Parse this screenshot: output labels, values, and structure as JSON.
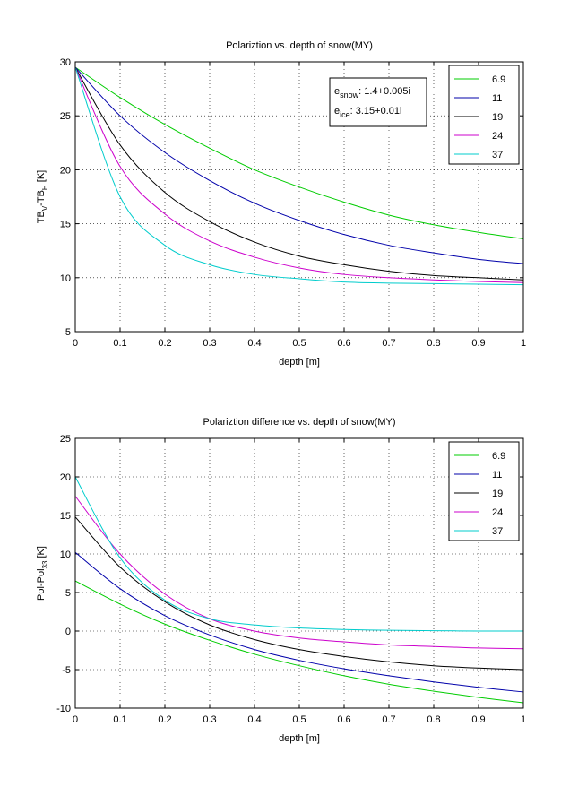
{
  "chart_data": [
    {
      "type": "line",
      "title": "Polariztion vs. depth of snow(MY)",
      "xlabel": "depth [m]",
      "ylabel": {
        "base1": "TB",
        "sub1": "V",
        "mid": "-TB",
        "sub2": "H",
        "tail": " [K]"
      },
      "xlim": [
        0,
        1
      ],
      "ylim": [
        5,
        30
      ],
      "xticks": [
        0,
        0.1,
        0.2,
        0.3,
        0.4,
        0.5,
        0.6,
        0.7,
        0.8,
        0.9,
        1
      ],
      "xtick_labels": [
        "0",
        "0.1",
        "0.2",
        "0.3",
        "0.4",
        "0.5",
        "0.6",
        "0.7",
        "0.8",
        "0.9",
        "1"
      ],
      "yticks": [
        5,
        10,
        15,
        20,
        25,
        30
      ],
      "ytick_labels": [
        "5",
        "10",
        "15",
        "20",
        "25",
        "30"
      ],
      "grid": true,
      "legend_placement": "top-right",
      "annotation": [
        {
          "base": "e",
          "sub": "snow",
          "text": ": 1.4+0.005i"
        },
        {
          "base": "e",
          "sub": "ice",
          "text": ": 3.15+0.01i"
        }
      ],
      "x": [
        0,
        0.1,
        0.2,
        0.3,
        0.4,
        0.5,
        0.6,
        0.7,
        0.8,
        0.9,
        1.0
      ],
      "series": [
        {
          "name": "6.9",
          "color": "#00cc00",
          "values": [
            29.5,
            26.7,
            24.2,
            22.0,
            20.0,
            18.4,
            17.0,
            15.8,
            14.9,
            14.2,
            13.6
          ]
        },
        {
          "name": "11",
          "color": "#0000aa",
          "values": [
            29.5,
            25.0,
            21.6,
            19.0,
            16.9,
            15.3,
            14.0,
            13.0,
            12.3,
            11.7,
            11.3
          ]
        },
        {
          "name": "19",
          "color": "#000000",
          "values": [
            29.5,
            22.3,
            17.9,
            15.2,
            13.3,
            12.0,
            11.2,
            10.6,
            10.2,
            10.0,
            9.8
          ]
        },
        {
          "name": "24",
          "color": "#cc00cc",
          "values": [
            29.5,
            20.3,
            15.9,
            13.4,
            11.9,
            10.9,
            10.3,
            10.0,
            9.8,
            9.65,
            9.55
          ]
        },
        {
          "name": "37",
          "color": "#00cccc",
          "values": [
            29.5,
            17.5,
            13.0,
            11.2,
            10.3,
            9.9,
            9.6,
            9.5,
            9.45,
            9.4,
            9.35
          ]
        }
      ]
    },
    {
      "type": "line",
      "title": "Polariztion difference vs. depth of snow(MY)",
      "xlabel": "depth [m]",
      "ylabel": {
        "base1": "Pol-Pol",
        "sub1": "33",
        "mid": "",
        "sub2": "",
        "tail": " [K]"
      },
      "xlim": [
        0,
        1
      ],
      "ylim": [
        -10,
        25
      ],
      "xticks": [
        0,
        0.1,
        0.2,
        0.3,
        0.4,
        0.5,
        0.6,
        0.7,
        0.8,
        0.9,
        1
      ],
      "xtick_labels": [
        "0",
        "0.1",
        "0.2",
        "0.3",
        "0.4",
        "0.5",
        "0.6",
        "0.7",
        "0.8",
        "0.9",
        "1"
      ],
      "yticks": [
        -10,
        -5,
        0,
        5,
        10,
        15,
        20,
        25
      ],
      "ytick_labels": [
        "-10",
        "-5",
        "0",
        "5",
        "10",
        "15",
        "20",
        "25"
      ],
      "grid": true,
      "legend_placement": "top-right",
      "x": [
        0,
        0.1,
        0.2,
        0.3,
        0.4,
        0.5,
        0.6,
        0.7,
        0.8,
        0.9,
        1.0
      ],
      "series": [
        {
          "name": "6.9",
          "color": "#00cc00",
          "values": [
            6.5,
            3.5,
            0.9,
            -1.2,
            -3.0,
            -4.5,
            -5.8,
            -6.9,
            -7.8,
            -8.6,
            -9.3
          ]
        },
        {
          "name": "11",
          "color": "#0000aa",
          "values": [
            10.2,
            5.5,
            2.0,
            -0.5,
            -2.4,
            -3.8,
            -4.9,
            -5.8,
            -6.6,
            -7.3,
            -7.9
          ]
        },
        {
          "name": "19",
          "color": "#000000",
          "values": [
            14.8,
            8.3,
            3.8,
            0.8,
            -1.1,
            -2.4,
            -3.3,
            -4.0,
            -4.5,
            -4.8,
            -5.0
          ]
        },
        {
          "name": "24",
          "color": "#cc00cc",
          "values": [
            17.5,
            10.0,
            4.8,
            1.6,
            0.0,
            -0.9,
            -1.4,
            -1.8,
            -2.0,
            -2.2,
            -2.3
          ]
        },
        {
          "name": "37",
          "color": "#00cccc",
          "values": [
            20.0,
            9.5,
            4.0,
            1.6,
            0.8,
            0.4,
            0.2,
            0.1,
            0.05,
            0.0,
            0.0
          ]
        }
      ]
    }
  ]
}
